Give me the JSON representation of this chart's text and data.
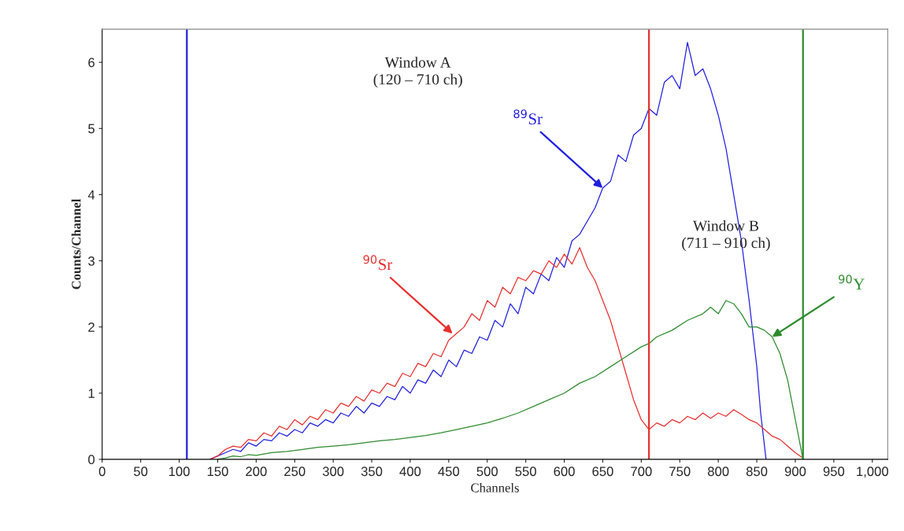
{
  "chart_data": {
    "type": "line",
    "xlabel": "Channels",
    "ylabel": "Counts/Channel",
    "xlim": [
      0,
      1020
    ],
    "xticks": [
      0,
      50,
      100,
      150,
      200,
      250,
      300,
      350,
      400,
      450,
      500,
      550,
      600,
      650,
      700,
      750,
      800,
      850,
      900,
      950,
      {
        "value": 1000,
        "label": "1,000"
      }
    ],
    "ylim": [
      0,
      6.5
    ],
    "yticks": [
      0,
      1,
      2,
      3,
      4,
      5,
      6
    ],
    "grid": false,
    "line_style": "solid",
    "marker": "none",
    "series": [
      {
        "color": "#2020e0",
        "x": [
          140,
          150,
          160,
          170,
          180,
          190,
          200,
          210,
          220,
          230,
          240,
          250,
          260,
          270,
          280,
          290,
          300,
          310,
          320,
          330,
          340,
          350,
          360,
          370,
          380,
          390,
          400,
          410,
          420,
          430,
          440,
          450,
          460,
          470,
          480,
          490,
          500,
          510,
          520,
          530,
          540,
          550,
          560,
          570,
          580,
          590,
          600,
          610,
          620,
          630,
          640,
          650,
          660,
          670,
          680,
          690,
          700,
          710,
          720,
          730,
          740,
          750,
          760,
          770,
          780,
          790,
          800,
          810,
          820,
          830,
          840,
          850,
          855,
          862
        ],
        "values": [
          0,
          0.05,
          0.1,
          0.15,
          0.12,
          0.25,
          0.2,
          0.3,
          0.28,
          0.4,
          0.35,
          0.45,
          0.4,
          0.55,
          0.5,
          0.6,
          0.55,
          0.7,
          0.65,
          0.8,
          0.7,
          0.85,
          0.8,
          0.95,
          0.9,
          1.1,
          1.0,
          1.2,
          1.15,
          1.35,
          1.25,
          1.5,
          1.4,
          1.65,
          1.6,
          1.85,
          1.8,
          2.1,
          2.0,
          2.35,
          2.2,
          2.6,
          2.5,
          2.8,
          2.7,
          3.05,
          2.9,
          3.3,
          3.4,
          3.6,
          3.8,
          4.1,
          4.2,
          4.6,
          4.5,
          4.9,
          5.0,
          5.3,
          5.2,
          5.7,
          5.8,
          5.6,
          6.3,
          5.8,
          5.9,
          5.6,
          5.2,
          4.7,
          4.0,
          3.3,
          2.4,
          1.4,
          0.7,
          0
        ]
      },
      {
        "color": "#e83030",
        "x": [
          140,
          150,
          160,
          170,
          180,
          190,
          200,
          210,
          220,
          230,
          240,
          250,
          260,
          270,
          280,
          290,
          300,
          310,
          320,
          330,
          340,
          350,
          360,
          370,
          380,
          390,
          400,
          410,
          420,
          430,
          440,
          450,
          460,
          470,
          480,
          490,
          500,
          510,
          520,
          530,
          540,
          550,
          560,
          570,
          580,
          590,
          600,
          610,
          620,
          630,
          640,
          650,
          660,
          670,
          680,
          690,
          700,
          710,
          720,
          730,
          740,
          750,
          760,
          770,
          780,
          790,
          800,
          810,
          820,
          830,
          840,
          850,
          860,
          870,
          880,
          890,
          900,
          910
        ],
        "values": [
          0,
          0.05,
          0.15,
          0.2,
          0.18,
          0.3,
          0.28,
          0.4,
          0.35,
          0.5,
          0.45,
          0.6,
          0.52,
          0.65,
          0.6,
          0.75,
          0.7,
          0.85,
          0.8,
          0.95,
          0.88,
          1.05,
          1.0,
          1.15,
          1.1,
          1.3,
          1.25,
          1.45,
          1.4,
          1.6,
          1.55,
          1.8,
          1.9,
          2.0,
          2.2,
          2.1,
          2.4,
          2.3,
          2.6,
          2.5,
          2.75,
          2.7,
          2.85,
          2.8,
          3.0,
          2.9,
          3.1,
          2.95,
          3.2,
          2.9,
          2.7,
          2.4,
          2.1,
          1.7,
          1.3,
          0.9,
          0.6,
          0.45,
          0.55,
          0.5,
          0.6,
          0.55,
          0.65,
          0.6,
          0.7,
          0.62,
          0.7,
          0.65,
          0.75,
          0.68,
          0.6,
          0.55,
          0.45,
          0.35,
          0.3,
          0.2,
          0.1,
          0.02
        ]
      },
      {
        "color": "#2e8b2e",
        "x": [
          150,
          160,
          170,
          180,
          190,
          200,
          220,
          240,
          260,
          280,
          300,
          320,
          340,
          360,
          380,
          400,
          420,
          440,
          460,
          480,
          500,
          520,
          540,
          560,
          580,
          600,
          620,
          640,
          660,
          680,
          700,
          710,
          720,
          740,
          760,
          780,
          790,
          800,
          810,
          820,
          830,
          840,
          850,
          860,
          870,
          880,
          890,
          900,
          910
        ],
        "values": [
          0,
          0.02,
          0.05,
          0.04,
          0.07,
          0.06,
          0.1,
          0.12,
          0.15,
          0.18,
          0.2,
          0.22,
          0.25,
          0.28,
          0.3,
          0.33,
          0.36,
          0.4,
          0.45,
          0.5,
          0.55,
          0.62,
          0.7,
          0.8,
          0.9,
          1.0,
          1.15,
          1.25,
          1.4,
          1.55,
          1.7,
          1.75,
          1.85,
          1.95,
          2.1,
          2.2,
          2.3,
          2.2,
          2.4,
          2.35,
          2.2,
          2.0,
          2.0,
          1.95,
          1.85,
          1.6,
          1.2,
          0.6,
          0
        ]
      }
    ],
    "ref_lines": [
      {
        "axis": "x",
        "value": 110,
        "color": "#2020e0"
      },
      {
        "axis": "x",
        "value": 710,
        "color": "#e83030"
      },
      {
        "axis": "x",
        "value": 910,
        "color": "#2e8b2e"
      }
    ],
    "annotations": [
      {
        "text": "$^{89}$Sr",
        "x": 650,
        "y": 4.1
      },
      {
        "text": "$^{90}$Sr",
        "x": 455,
        "y": 1.9
      },
      {
        "text": "$^{90}$Y",
        "x": 870,
        "y": 1.85
      },
      "Window A\n(120 – 710 ch)",
      "Window B\n(711 – 910 ch)"
    ]
  }
}
